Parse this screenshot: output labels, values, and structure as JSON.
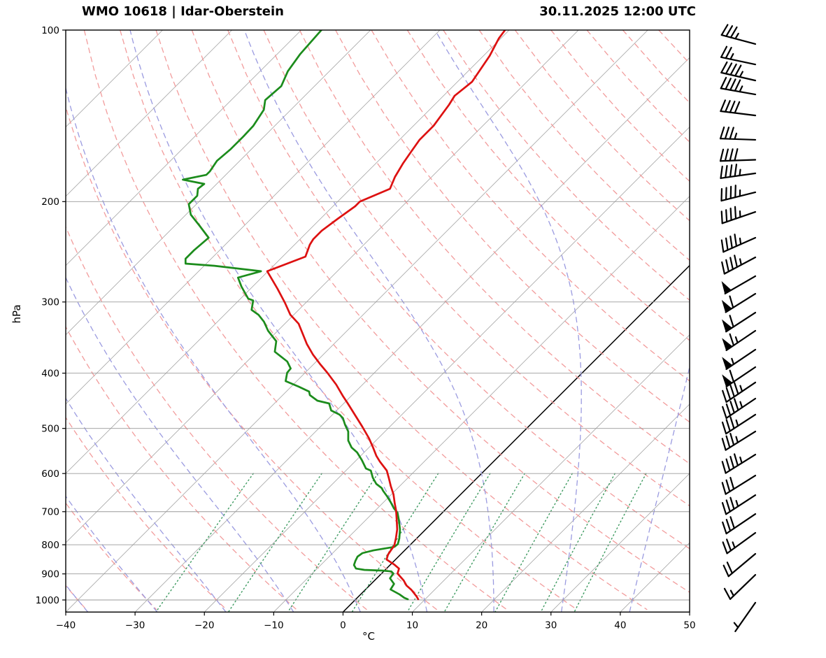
{
  "header": {
    "station": "WMO 10618 | Idar-Oberstein",
    "datetime": "30.11.2025 12:00 UTC"
  },
  "axes": {
    "xlabel": "°C",
    "ylabel": "hPa",
    "x_ticks": [
      -40,
      -30,
      -20,
      -10,
      0,
      10,
      20,
      30,
      40,
      50
    ],
    "p_ticks": [
      100,
      200,
      300,
      400,
      500,
      600,
      700,
      800,
      900,
      1000
    ],
    "x_range_bottom_C": [
      -40,
      50
    ],
    "p_range_hPa": [
      100,
      1050
    ]
  },
  "style": {
    "temperature_color": "#dd1111",
    "dewpoint_color": "#1c8c1c",
    "isotherm_color": "#a3a3a3",
    "zero_isotherm_color": "#000000",
    "pressure_grid_color": "#9a9a9a",
    "dry_adiabat_color": "#f29c9c",
    "moist_adiabat_color": "#9b9be0",
    "mixing_ratio_color": "#3d9a60",
    "barb_color": "#000000",
    "frame_color": "#000000"
  },
  "chart_data": {
    "type": "line",
    "diagram": "skew-t-log-p",
    "title": "WMO 10618 | Idar-Oberstein — 30.11.2025 12:00 UTC",
    "skew_deg": 45,
    "isotherms_C": {
      "start": -110,
      "end": 50,
      "step": 10,
      "highlight": 0
    },
    "dry_adiabats_C": {
      "start": -60,
      "end": 200,
      "step": 10
    },
    "moist_adiabats_C": {
      "start": -60,
      "end": 50,
      "step": 10
    },
    "mixing_ratio_g_kg": [
      0.4,
      1,
      2,
      4,
      7,
      10,
      16,
      24,
      32
    ],
    "mixing_ratio_p_range": [
      600,
      1050
    ],
    "temperature_C": [
      [
        100,
        -60.6
      ],
      [
        103.4,
        -60.3
      ],
      [
        111,
        -59.1
      ],
      [
        123.3,
        -57.9
      ],
      [
        130.4,
        -58.4
      ],
      [
        135.3,
        -57.9
      ],
      [
        147.2,
        -57.1
      ],
      [
        155.8,
        -57.1
      ],
      [
        163.5,
        -56.6
      ],
      [
        171.1,
        -56.1
      ],
      [
        181,
        -55.3
      ],
      [
        189.9,
        -54.3
      ],
      [
        199.9,
        -56.8
      ],
      [
        203.8,
        -56.8
      ],
      [
        214.4,
        -57.5
      ],
      [
        224.9,
        -58.1
      ],
      [
        232.7,
        -58.1
      ],
      [
        238,
        -57.8
      ],
      [
        249.8,
        -56.7
      ],
      [
        265,
        -60.1
      ],
      [
        284.4,
        -56.1
      ],
      [
        301,
        -53
      ],
      [
        315.9,
        -50.5
      ],
      [
        327.6,
        -48
      ],
      [
        355.5,
        -43.9
      ],
      [
        371,
        -41.5
      ],
      [
        384.9,
        -39.2
      ],
      [
        399.2,
        -36.8
      ],
      [
        418.9,
        -33.8
      ],
      [
        439.4,
        -31.1
      ],
      [
        452.1,
        -29.4
      ],
      [
        472.9,
        -26.8
      ],
      [
        496.2,
        -24
      ],
      [
        520.6,
        -21.3
      ],
      [
        540.2,
        -19.4
      ],
      [
        558.9,
        -17.7
      ],
      [
        571.7,
        -16.4
      ],
      [
        592.9,
        -14.1
      ],
      [
        610.1,
        -12.8
      ],
      [
        631,
        -11.3
      ],
      [
        652.7,
        -9.7
      ],
      [
        677.2,
        -8.2
      ],
      [
        696.6,
        -7
      ],
      [
        722.7,
        -5.6
      ],
      [
        752.1,
        -4.1
      ],
      [
        780,
        -3
      ],
      [
        802.5,
        -2.2
      ],
      [
        818.5,
        -2
      ],
      [
        832.5,
        -1.8
      ],
      [
        849.2,
        -1.3
      ],
      [
        866.2,
        0.5
      ],
      [
        880.9,
        1.8
      ],
      [
        898.6,
        2.3
      ],
      [
        924.3,
        4.2
      ],
      [
        942.9,
        5.3
      ],
      [
        959.1,
        6.6
      ],
      [
        972.7,
        7.5
      ],
      [
        986.6,
        8.4
      ],
      [
        997.2,
        9
      ]
    ],
    "dewpoint_C": [
      [
        100,
        -87.1
      ],
      [
        110.1,
        -86.7
      ],
      [
        118.1,
        -86
      ],
      [
        125.4,
        -84.8
      ],
      [
        132.7,
        -85.1
      ],
      [
        138,
        -83.9
      ],
      [
        147.2,
        -83.1
      ],
      [
        153.6,
        -83
      ],
      [
        161.7,
        -83
      ],
      [
        169.6,
        -83.3
      ],
      [
        176.9,
        -82.8
      ],
      [
        179.5,
        -82.8
      ],
      [
        183,
        -85.5
      ],
      [
        186.2,
        -81.8
      ],
      [
        189.9,
        -82
      ],
      [
        195.3,
        -81.1
      ],
      [
        202.1,
        -81.1
      ],
      [
        210.8,
        -79.3
      ],
      [
        219.9,
        -76.6
      ],
      [
        231.4,
        -73.4
      ],
      [
        243.5,
        -73.7
      ],
      [
        251.9,
        -73.7
      ],
      [
        256.9,
        -73
      ],
      [
        259.2,
        -68.5
      ],
      [
        265,
        -61
      ],
      [
        271.9,
        -63.4
      ],
      [
        282,
        -61.6
      ],
      [
        296,
        -58.9
      ],
      [
        298.3,
        -57.9
      ],
      [
        309.7,
        -56.8
      ],
      [
        315.9,
        -55.1
      ],
      [
        324.9,
        -53.3
      ],
      [
        337,
        -51.4
      ],
      [
        351.6,
        -48.7
      ],
      [
        366.8,
        -47.4
      ],
      [
        381.6,
        -44.2
      ],
      [
        392.5,
        -42.7
      ],
      [
        399.2,
        -42.6
      ],
      [
        413,
        -41.6
      ],
      [
        422.4,
        -38.9
      ],
      [
        430.9,
        -36.7
      ],
      [
        437,
        -36.1
      ],
      [
        447,
        -34.2
      ],
      [
        452.1,
        -32.1
      ],
      [
        465,
        -30.8
      ],
      [
        472.9,
        -29
      ],
      [
        479.6,
        -28
      ],
      [
        492,
        -26.8
      ],
      [
        506.3,
        -25.3
      ],
      [
        525.1,
        -24
      ],
      [
        540.2,
        -22.5
      ],
      [
        550.9,
        -21
      ],
      [
        568.4,
        -19.2
      ],
      [
        588,
        -17.4
      ],
      [
        592.9,
        -16.4
      ],
      [
        610.1,
        -15.1
      ],
      [
        625.6,
        -13.7
      ],
      [
        636.4,
        -12.3
      ],
      [
        643.6,
        -11.7
      ],
      [
        658.3,
        -10.3
      ],
      [
        673.4,
        -9
      ],
      [
        690.8,
        -7.6
      ],
      [
        702.5,
        -6.5
      ],
      [
        722.7,
        -5.3
      ],
      [
        752.1,
        -3.7
      ],
      [
        780,
        -2.5
      ],
      [
        797.9,
        -1.9
      ],
      [
        806.9,
        -2
      ],
      [
        818.5,
        -4.5
      ],
      [
        827.6,
        -5.7
      ],
      [
        839.4,
        -5.9
      ],
      [
        853.7,
        -5.6
      ],
      [
        868.5,
        -5.2
      ],
      [
        880.9,
        -4.4
      ],
      [
        885.6,
        -3
      ],
      [
        888,
        -0.3
      ],
      [
        891,
        1.1
      ],
      [
        898.6,
        1.7
      ],
      [
        916.2,
        1.9
      ],
      [
        937.2,
        3.3
      ],
      [
        958.6,
        3.6
      ],
      [
        977.7,
        5.6
      ],
      [
        991.5,
        6.8
      ],
      [
        997.2,
        7.5
      ]
    ],
    "wind_barbs": [
      {
        "p": 105.8,
        "kt": 35,
        "dir": 285
      },
      {
        "p": 114.9,
        "kt": 25,
        "dir": 282
      },
      {
        "p": 122.6,
        "kt": 45,
        "dir": 283
      },
      {
        "p": 129.7,
        "kt": 45,
        "dir": 280
      },
      {
        "p": 141.2,
        "kt": 40,
        "dir": 277
      },
      {
        "p": 155.8,
        "kt": 35,
        "dir": 272
      },
      {
        "p": 168.9,
        "kt": 40,
        "dir": 268
      },
      {
        "p": 178.4,
        "kt": 45,
        "dir": 262
      },
      {
        "p": 192.6,
        "kt": 45,
        "dir": 256
      },
      {
        "p": 208.5,
        "kt": 45,
        "dir": 251
      },
      {
        "p": 231.4,
        "kt": 45,
        "dir": 246
      },
      {
        "p": 250.5,
        "kt": 45,
        "dir": 242
      },
      {
        "p": 270.3,
        "kt": 50,
        "dir": 240
      },
      {
        "p": 290.2,
        "kt": 60,
        "dir": 238
      },
      {
        "p": 313.2,
        "kt": 60,
        "dir": 237
      },
      {
        "p": 337,
        "kt": 65,
        "dir": 236
      },
      {
        "p": 363.7,
        "kt": 55,
        "dir": 236
      },
      {
        "p": 390.3,
        "kt": 60,
        "dir": 236
      },
      {
        "p": 415.3,
        "kt": 45,
        "dir": 236
      },
      {
        "p": 443.2,
        "kt": 45,
        "dir": 236
      },
      {
        "p": 472.9,
        "kt": 35,
        "dir": 237
      },
      {
        "p": 506.3,
        "kt": 35,
        "dir": 238
      },
      {
        "p": 555.7,
        "kt": 45,
        "dir": 238
      },
      {
        "p": 604.9,
        "kt": 30,
        "dir": 238
      },
      {
        "p": 654.7,
        "kt": 35,
        "dir": 237
      },
      {
        "p": 706.6,
        "kt": 30,
        "dir": 236
      },
      {
        "p": 762.4,
        "kt": 25,
        "dir": 234
      },
      {
        "p": 829.9,
        "kt": 20,
        "dir": 230
      },
      {
        "p": 903.4,
        "kt": 15,
        "dir": 226
      },
      {
        "p": 1011,
        "kt": 5,
        "dir": 215
      }
    ]
  }
}
